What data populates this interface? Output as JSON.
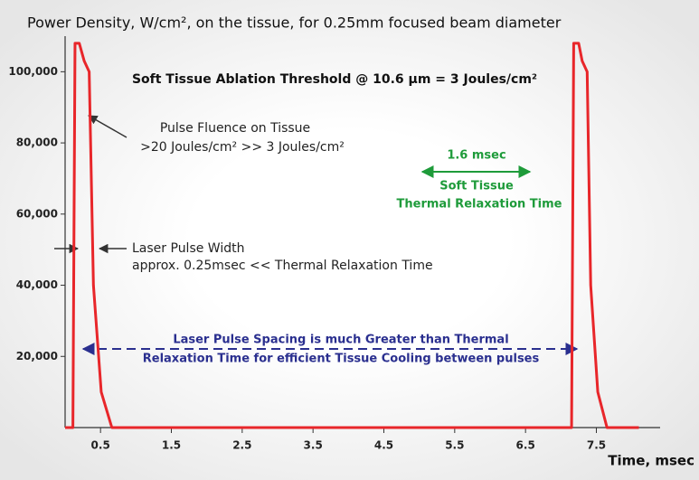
{
  "chart_data": {
    "type": "line",
    "title": "Power Density, W/cm², on the tissue, for 0.25mm focused beam diameter",
    "xlabel": "Time, msec",
    "x": [
      0,
      0.11,
      0.14,
      0.2,
      0.27,
      0.34,
      0.4,
      0.51,
      0.66,
      7.15,
      7.18,
      7.25,
      7.3,
      7.37,
      7.42,
      7.52,
      7.65,
      8.1
    ],
    "series": [
      {
        "color": "#e8262a",
        "values": [
          0,
          0,
          108000,
          108000,
          103000,
          100000,
          40000,
          10000,
          0,
          0,
          108000,
          108000,
          103000,
          100000,
          40000,
          10000,
          0,
          0
        ]
      }
    ],
    "xlim": [
      0,
      8.4
    ],
    "xticks": [
      0.5,
      1.5,
      2.5,
      3.5,
      4.5,
      5.5,
      6.5,
      7.5
    ],
    "ylim": [
      0,
      110000
    ],
    "yticks": [
      {
        "value": 20000,
        "label": "20,000"
      },
      {
        "value": 40000,
        "label": "40,000"
      },
      {
        "value": 60000,
        "label": "60,000"
      },
      {
        "value": 80000,
        "label": "80,000"
      },
      {
        "value": 100000,
        "label": "100,000"
      }
    ],
    "annotations": [
      {
        "text": "Soft Tissue Ablation Threshold @ 10.6 µm = 3 Joules/cm²",
        "color": "#111111"
      },
      {
        "text": "Pulse Fluence on Tissue",
        "color": "#222222"
      },
      {
        "text": ">20 Joules/cm² >> 3 Joules/cm²",
        "color": "#222222"
      },
      {
        "text": "1.6 msec",
        "color": "#1e9b3a"
      },
      {
        "text": "Soft Tissue",
        "color": "#1e9b3a"
      },
      {
        "text": "Thermal Relaxation Time",
        "color": "#1e9b3a"
      },
      {
        "text": "Laser Pulse Width",
        "color": "#222222"
      },
      {
        "text": "approx. 0.25msec << Thermal Relaxation Time",
        "color": "#222222"
      },
      {
        "text": "Laser Pulse Spacing is much Greater than Thermal",
        "color": "#2a2f8f"
      },
      {
        "text": "Relaxation Time for efficient Tissue Cooling between pulses",
        "color": "#2a2f8f"
      }
    ]
  }
}
